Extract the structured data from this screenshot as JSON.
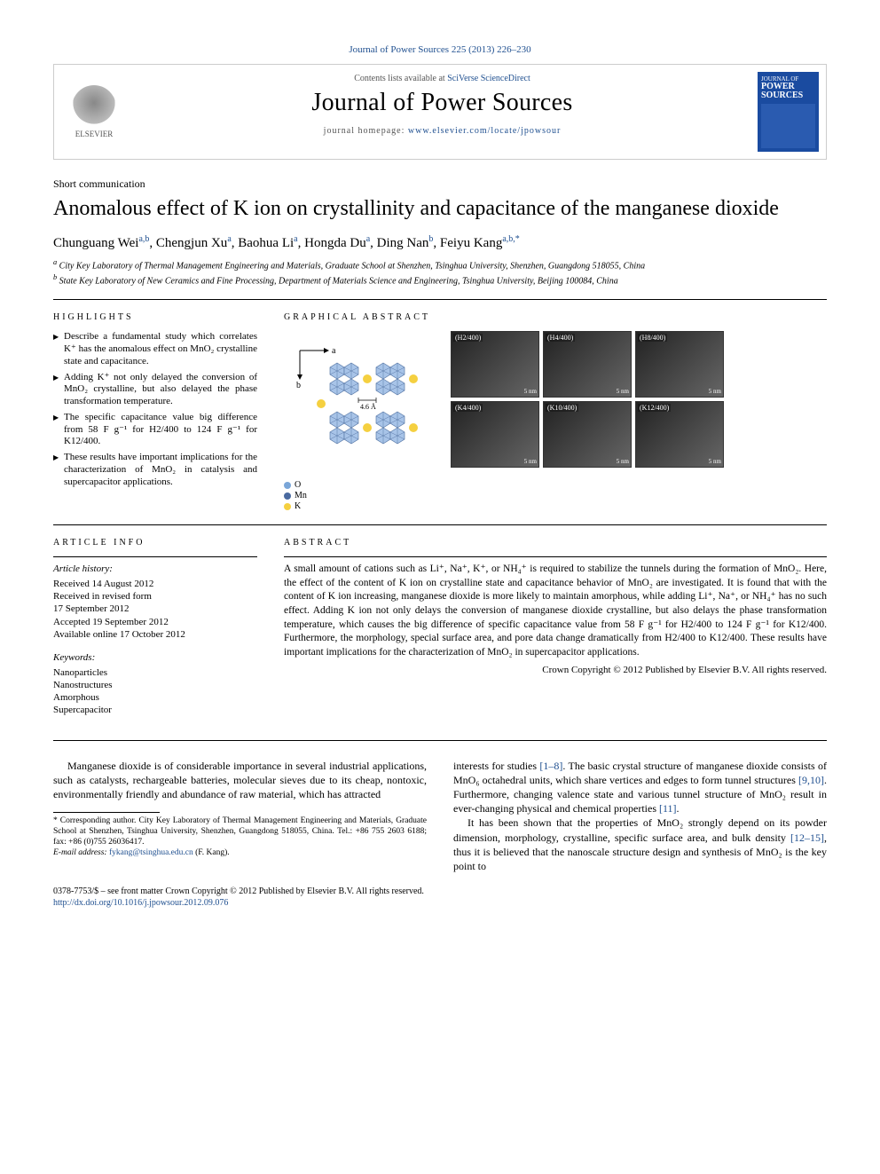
{
  "journal_ref": "Journal of Power Sources 225 (2013) 226–230",
  "masthead": {
    "contents_prefix": "Contents lists available at ",
    "contents_link": "SciVerse ScienceDirect",
    "journal_name": "Journal of Power Sources",
    "homepage_prefix": "journal homepage: ",
    "homepage_url": "www.elsevier.com/locate/jpowsour",
    "publisher": "ELSEVIER",
    "cover_label_top": "JOURNAL OF",
    "cover_label_main": "POWER SOURCES"
  },
  "article_type": "Short communication",
  "title": "Anomalous effect of K ion on crystallinity and capacitance of the manganese dioxide",
  "authors_html": "Chunguang Wei|a,b|, Chengjun Xu|a|, Baohua Li|a|, Hongda Du|a|, Ding Nan|b|, Feiyu Kang|a,b,*|",
  "authors": [
    {
      "name": "Chunguang Wei",
      "aff": "a,b"
    },
    {
      "name": "Chengjun Xu",
      "aff": "a"
    },
    {
      "name": "Baohua Li",
      "aff": "a"
    },
    {
      "name": "Hongda Du",
      "aff": "a"
    },
    {
      "name": "Ding Nan",
      "aff": "b"
    },
    {
      "name": "Feiyu Kang",
      "aff": "a,b,*"
    }
  ],
  "affiliations": {
    "a": "City Key Laboratory of Thermal Management Engineering and Materials, Graduate School at Shenzhen, Tsinghua University, Shenzhen, Guangdong 518055, China",
    "b": "State Key Laboratory of New Ceramics and Fine Processing, Department of Materials Science and Engineering, Tsinghua University, Beijing 100084, China"
  },
  "headings": {
    "highlights": "HIGHLIGHTS",
    "graphical_abstract": "GRAPHICAL ABSTRACT",
    "article_info": "ARTICLE INFO",
    "abstract": "ABSTRACT"
  },
  "highlights": [
    "Describe a fundamental study which correlates K⁺ has the anomalous effect on MnO₂ crystalline state and capacitance.",
    "Adding K⁺ not only delayed the conversion of MnO₂ crystalline, but also delayed the phase transformation temperature.",
    "The specific capacitance value big difference from 58 F g⁻¹ for H2/400 to 124 F g⁻¹ for K12/400.",
    "These results have important implications for the characterization of MnO₂ in catalysis and supercapacitor applications."
  ],
  "graphical_abstract": {
    "axis_a": "a",
    "axis_b": "b",
    "dimension": "4.6 Å",
    "legend": [
      {
        "label": "O",
        "color": "#7aa6d8",
        "shape": "circle"
      },
      {
        "label": "Mn",
        "color": "#4a6aa0",
        "shape": "diamond"
      },
      {
        "label": "K",
        "color": "#f5d040",
        "shape": "circle"
      }
    ],
    "micrographs": [
      [
        {
          "label": "(H2/400)",
          "scale": "5 nm"
        },
        {
          "label": "(H4/400)",
          "scale": "5 nm"
        },
        {
          "label": "(H8/400)",
          "scale": "5 nm"
        }
      ],
      [
        {
          "label": "(K4/400)",
          "scale": "5 nm"
        },
        {
          "label": "(K10/400)",
          "scale": "5 nm"
        },
        {
          "label": "(K12/400)",
          "scale": "5 nm"
        }
      ]
    ],
    "colors": {
      "octahedron_fill": "#a8c4e8",
      "octahedron_stroke": "#5a7aa8",
      "k_ion": "#f5d040",
      "o_atom": "#7aa6d8",
      "mn_atom": "#4a6aa0"
    }
  },
  "article_info": {
    "history_head": "Article history:",
    "history": [
      "Received 14 August 2012",
      "Received in revised form",
      "17 September 2012",
      "Accepted 19 September 2012",
      "Available online 17 October 2012"
    ],
    "keywords_head": "Keywords:",
    "keywords": [
      "Nanoparticles",
      "Nanostructures",
      "Amorphous",
      "Supercapacitor"
    ]
  },
  "abstract": "A small amount of cations such as Li⁺, Na⁺, K⁺, or NH₄⁺ is required to stabilize the tunnels during the formation of MnO₂. Here, the effect of the content of K ion on crystalline state and capacitance behavior of MnO₂ are investigated. It is found that with the content of K ion increasing, manganese dioxide is more likely to maintain amorphous, while adding Li⁺, Na⁺, or NH₄⁺ has no such effect. Adding K ion not only delays the conversion of manganese dioxide crystalline, but also delays the phase transformation temperature, which causes the big difference of specific capacitance value from 58 F g⁻¹ for H2/400 to 124 F g⁻¹ for K12/400. Furthermore, the morphology, special surface area, and pore data change dramatically from H2/400 to K12/400. These results have important implications for the characterization of MnO₂ in supercapacitor applications.",
  "abstract_copyright": "Crown Copyright © 2012 Published by Elsevier B.V. All rights reserved.",
  "body": {
    "col1": "Manganese dioxide is of considerable importance in several industrial applications, such as catalysts, rechargeable batteries, molecular sieves due to its cheap, nontoxic, environmentally friendly and abundance of raw material, which has attracted",
    "col2_p1_a": "interests for studies ",
    "col2_p1_refs1": "[1–8]",
    "col2_p1_b": ". The basic crystal structure of manganese dioxide consists of MnO₆ octahedral units, which share vertices and edges to form tunnel structures ",
    "col2_p1_refs2": "[9,10]",
    "col2_p1_c": ". Furthermore, changing valence state and various tunnel structure of MnO₂ result in ever-changing physical and chemical properties ",
    "col2_p1_refs3": "[11]",
    "col2_p1_d": ".",
    "col2_p2_a": "It has been shown that the properties of MnO₂ strongly depend on its powder dimension, morphology, crystalline, specific surface area, and bulk density ",
    "col2_p2_refs": "[12–15]",
    "col2_p2_b": ", thus it is believed that the nanoscale structure design and synthesis of MnO₂ is the key point to"
  },
  "footnote": {
    "marker": "*",
    "text": "Corresponding author. City Key Laboratory of Thermal Management Engineering and Materials, Graduate School at Shenzhen, Tsinghua University, Shenzhen, Guangdong 518055, China. Tel.: +86 755 2603 6188; fax: +86 (0)755 26036417.",
    "email_label": "E-mail address:",
    "email": "fykang@tsinghua.edu.cn",
    "email_person": "(F. Kang)."
  },
  "footer": {
    "issn": "0378-7753/$ – see front matter Crown Copyright © 2012 Published by Elsevier B.V. All rights reserved.",
    "doi": "http://dx.doi.org/10.1016/j.jpowsour.2012.09.076"
  }
}
